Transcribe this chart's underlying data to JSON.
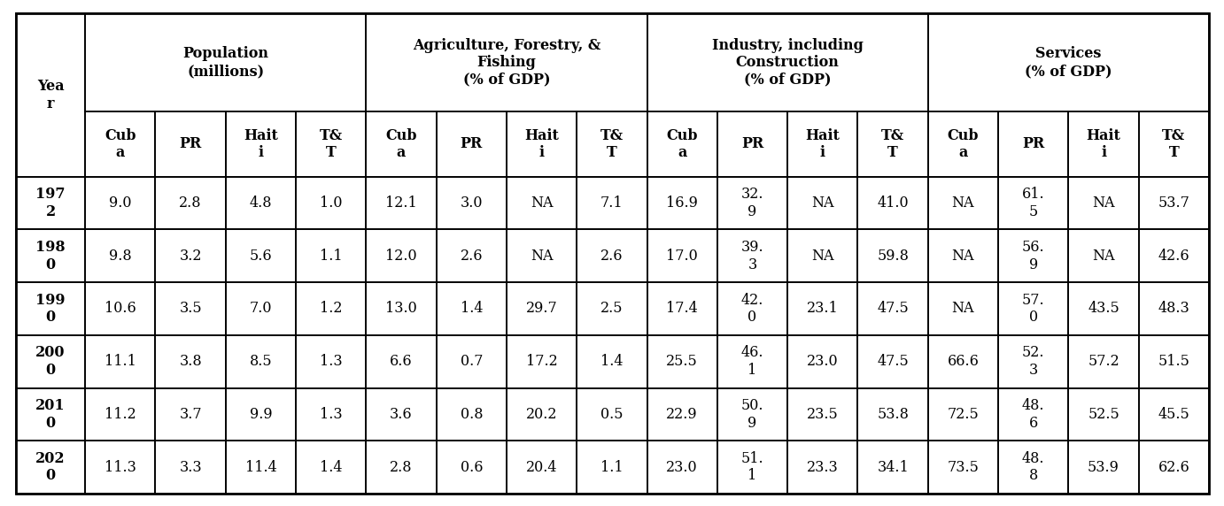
{
  "sub_headers": [
    "Cub\na",
    "PR",
    "Hait\ni",
    "T&\nT"
  ],
  "years": [
    "197\n2",
    "198\n0",
    "199\n0",
    "200\n0",
    "201\n0",
    "202\n0"
  ],
  "data": [
    [
      "9.0",
      "2.8",
      "4.8",
      "1.0",
      "12.1",
      "3.0",
      "NA",
      "7.1",
      "16.9",
      "32.\n9",
      "NA",
      "41.0",
      "NA",
      "61.\n5",
      "NA",
      "53.7"
    ],
    [
      "9.8",
      "3.2",
      "5.6",
      "1.1",
      "12.0",
      "2.6",
      "NA",
      "2.6",
      "17.0",
      "39.\n3",
      "NA",
      "59.8",
      "NA",
      "56.\n9",
      "NA",
      "42.6"
    ],
    [
      "10.6",
      "3.5",
      "7.0",
      "1.2",
      "13.0",
      "1.4",
      "29.7",
      "2.5",
      "17.4",
      "42.\n0",
      "23.1",
      "47.5",
      "NA",
      "57.\n0",
      "43.5",
      "48.3"
    ],
    [
      "11.1",
      "3.8",
      "8.5",
      "1.3",
      "6.6",
      "0.7",
      "17.2",
      "1.4",
      "25.5",
      "46.\n1",
      "23.0",
      "47.5",
      "66.6",
      "52.\n3",
      "57.2",
      "51.5"
    ],
    [
      "11.2",
      "3.7",
      "9.9",
      "1.3",
      "3.6",
      "0.8",
      "20.2",
      "0.5",
      "22.9",
      "50.\n9",
      "23.5",
      "53.8",
      "72.5",
      "48.\n6",
      "52.5",
      "45.5"
    ],
    [
      "11.3",
      "3.3",
      "11.4",
      "1.4",
      "2.8",
      "0.6",
      "20.4",
      "1.1",
      "23.0",
      "51.\n1",
      "23.3",
      "34.1",
      "73.5",
      "48.\n8",
      "53.9",
      "62.6"
    ]
  ],
  "group_labels": [
    "Population\n(millions)",
    "Agriculture, Forestry, &\nFishing\n(% of GDP)",
    "Industry, including\nConstruction\n(% of GDP)",
    "Services\n(% of GDP)"
  ],
  "background_color": "#ffffff",
  "border_color": "#000000",
  "text_color": "#000000",
  "year_label": "Yea\nr",
  "font_size": 11.5,
  "header_font_size": 11.5
}
